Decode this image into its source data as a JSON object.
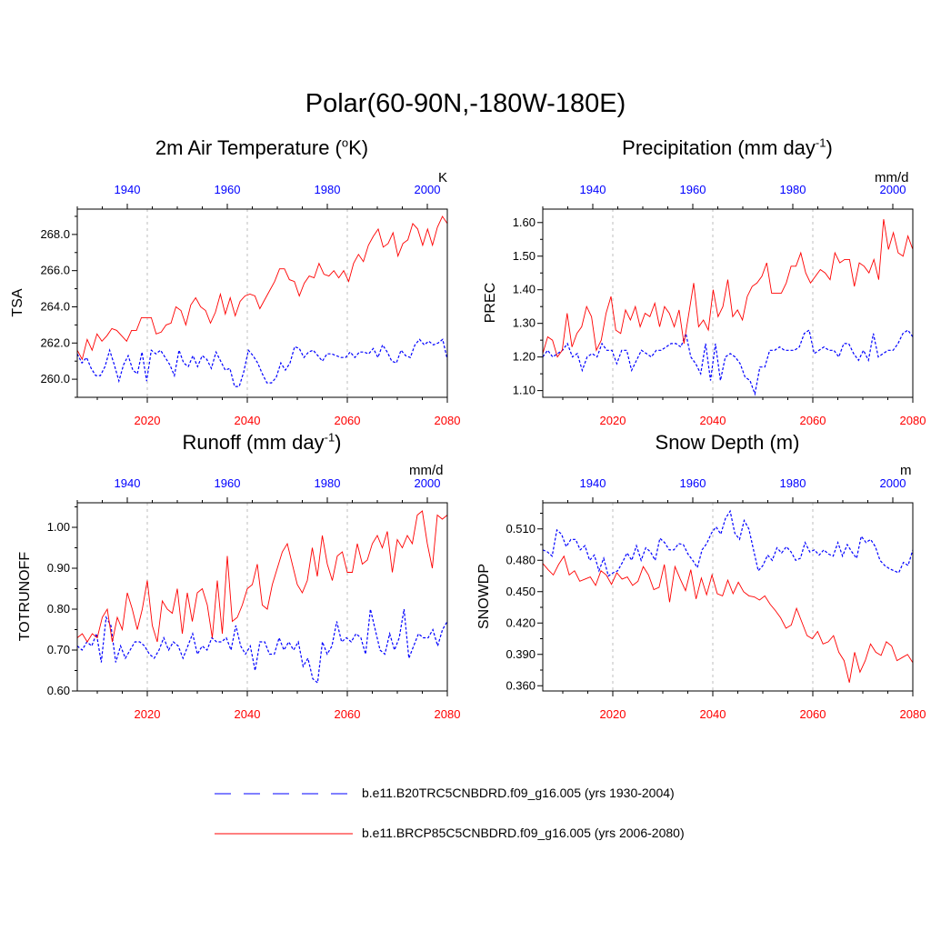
{
  "title": "Polar(60-90N,-180W-180E)",
  "legend": [
    {
      "label": "b.e11.B20TRC5CNBDRD.f09_g16.005 (yrs 1930-2004)",
      "color": "#0000ff",
      "style": "dashed"
    },
    {
      "label": "b.e11.BRCP85C5CNBDRD.f09_g16.005 (yrs 2006-2080)",
      "color": "#ff0000",
      "style": "solid"
    }
  ],
  "chart_data": [
    {
      "type": "line",
      "title_main": "2m Air Temperature (",
      "title_sup": "o",
      "title_tail": "K)",
      "units": "K",
      "ylabel": "TSA",
      "ylim": [
        259.0,
        269.4
      ],
      "yticks": [
        260.0,
        262.0,
        264.0,
        266.0,
        268.0
      ],
      "ytick_labels": [
        "260.0",
        "262.0",
        "264.0",
        "266.0",
        "268.0"
      ],
      "bottom_axis": {
        "range": [
          2006,
          2080
        ],
        "ticks": [
          2020,
          2040,
          2060,
          2080
        ],
        "labels": [
          "2020",
          "2040",
          "2060",
          "2080"
        ],
        "color": "#ff0000"
      },
      "top_axis": {
        "range": [
          1930,
          2004
        ],
        "ticks": [
          1940,
          1960,
          1980,
          2000
        ],
        "labels": [
          "1940",
          "1960",
          "1980",
          "2000"
        ],
        "color": "#0000ff"
      },
      "series": [
        {
          "name": "b.e11.B20TRC5CNBDRD.f09_g16.005 (yrs 1930-2004)",
          "color": "#0000ff",
          "dashed": true,
          "values": [
            261.4,
            260.9,
            261.2,
            260.6,
            260.2,
            260.2,
            260.7,
            261.6,
            260.8,
            259.9,
            260.8,
            261.3,
            260.5,
            260.3,
            261.5,
            259.9,
            261.6,
            261.4,
            261.6,
            261.2,
            260.8,
            260.2,
            261.6,
            260.9,
            260.7,
            261.3,
            260.7,
            261.3,
            261.1,
            260.6,
            261.5,
            261.0,
            260.5,
            260.6,
            259.6,
            259.6,
            260.4,
            261.6,
            261.3,
            260.9,
            260.3,
            259.8,
            259.8,
            260.1,
            260.9,
            260.5,
            260.9,
            261.8,
            261.7,
            261.2,
            261.5,
            261.6,
            261.3,
            261.0,
            261.4,
            261.4,
            261.3,
            261.2,
            261.2,
            261.5,
            261.2,
            261.5,
            261.5,
            261.4,
            261.7,
            261.2,
            261.9,
            261.5,
            261.0,
            260.9,
            261.6,
            261.3,
            261.2,
            261.9,
            262.2,
            261.9,
            262.1,
            261.9,
            262.0,
            262.2,
            261.1
          ]
        },
        {
          "name": "b.e11.BRCP85C5CNBDRD.f09_g16.005 (yrs 2006-2080)",
          "color": "#ff0000",
          "dashed": false,
          "values": [
            261.6,
            261.1,
            262.2,
            261.6,
            262.5,
            262.1,
            262.4,
            262.8,
            262.7,
            262.4,
            262.1,
            262.7,
            262.7,
            263.4,
            263.4,
            263.4,
            262.5,
            262.6,
            263.0,
            263.1,
            264.0,
            263.8,
            263.0,
            264.1,
            264.5,
            264.0,
            263.8,
            263.1,
            263.7,
            264.7,
            263.6,
            264.5,
            263.5,
            264.3,
            264.6,
            264.7,
            264.6,
            263.9,
            264.4,
            264.9,
            265.4,
            266.1,
            266.1,
            265.5,
            265.4,
            264.6,
            265.3,
            265.7,
            265.6,
            266.4,
            265.8,
            265.7,
            266.0,
            265.6,
            266.0,
            265.4,
            266.4,
            266.9,
            266.5,
            267.4,
            267.9,
            268.3,
            267.3,
            267.5,
            268.1,
            266.8,
            267.5,
            267.7,
            268.6,
            268.3,
            267.4,
            268.3,
            267.4,
            268.4,
            269.0,
            268.6
          ]
        }
      ]
    },
    {
      "type": "line",
      "title_main": "Precipitation (mm day",
      "title_sup": "-1",
      "title_tail": ")",
      "units": "mm/d",
      "ylabel": "PREC",
      "ylim": [
        1.08,
        1.64
      ],
      "yticks": [
        1.1,
        1.2,
        1.3,
        1.4,
        1.5,
        1.6
      ],
      "ytick_labels": [
        "1.10",
        "1.20",
        "1.30",
        "1.40",
        "1.50",
        "1.60"
      ],
      "bottom_axis": {
        "range": [
          2006,
          2080
        ],
        "ticks": [
          2020,
          2040,
          2060,
          2080
        ],
        "labels": [
          "2020",
          "2040",
          "2060",
          "2080"
        ],
        "color": "#ff0000"
      },
      "top_axis": {
        "range": [
          1930,
          2004
        ],
        "ticks": [
          1940,
          1960,
          1980,
          2000
        ],
        "labels": [
          "1940",
          "1960",
          "1980",
          "2000"
        ],
        "color": "#0000ff"
      },
      "series": [
        {
          "name": "b.e11.B20TRC5CNBDRD.f09_g16.005 (yrs 1930-2004)",
          "color": "#0000ff",
          "dashed": true,
          "values": [
            1.2,
            1.22,
            1.2,
            1.21,
            1.22,
            1.24,
            1.2,
            1.21,
            1.16,
            1.2,
            1.21,
            1.2,
            1.24,
            1.22,
            1.22,
            1.18,
            1.22,
            1.22,
            1.16,
            1.19,
            1.22,
            1.21,
            1.2,
            1.22,
            1.22,
            1.23,
            1.24,
            1.24,
            1.23,
            1.27,
            1.2,
            1.18,
            1.15,
            1.24,
            1.13,
            1.24,
            1.13,
            1.2,
            1.21,
            1.2,
            1.18,
            1.14,
            1.13,
            1.09,
            1.17,
            1.17,
            1.22,
            1.22,
            1.23,
            1.22,
            1.22,
            1.22,
            1.23,
            1.27,
            1.28,
            1.21,
            1.22,
            1.23,
            1.22,
            1.22,
            1.2,
            1.24,
            1.24,
            1.21,
            1.19,
            1.22,
            1.19,
            1.27,
            1.2,
            1.21,
            1.22,
            1.22,
            1.24,
            1.27,
            1.28,
            1.26
          ]
        },
        {
          "name": "b.e11.BRCP85C5CNBDRD.f09_g16.005 (yrs 2006-2080)",
          "color": "#ff0000",
          "dashed": false,
          "values": [
            1.21,
            1.26,
            1.25,
            1.2,
            1.22,
            1.33,
            1.23,
            1.27,
            1.29,
            1.35,
            1.32,
            1.22,
            1.25,
            1.33,
            1.38,
            1.28,
            1.27,
            1.34,
            1.31,
            1.35,
            1.29,
            1.33,
            1.32,
            1.36,
            1.29,
            1.35,
            1.33,
            1.29,
            1.34,
            1.24,
            1.33,
            1.42,
            1.29,
            1.31,
            1.28,
            1.4,
            1.32,
            1.35,
            1.43,
            1.32,
            1.34,
            1.31,
            1.38,
            1.41,
            1.42,
            1.44,
            1.48,
            1.39,
            1.39,
            1.39,
            1.42,
            1.47,
            1.47,
            1.51,
            1.45,
            1.42,
            1.44,
            1.46,
            1.45,
            1.43,
            1.51,
            1.48,
            1.49,
            1.49,
            1.41,
            1.48,
            1.47,
            1.45,
            1.49,
            1.43,
            1.61,
            1.52,
            1.57,
            1.51,
            1.5,
            1.56,
            1.52
          ]
        }
      ]
    },
    {
      "type": "line",
      "title_main": "Runoff (mm day",
      "title_sup": "-1",
      "title_tail": ")",
      "units": "mm/d",
      "ylabel": "TOTRUNOFF",
      "ylim": [
        0.6,
        1.06
      ],
      "yticks": [
        0.6,
        0.7,
        0.8,
        0.9,
        1.0
      ],
      "ytick_labels": [
        "0.60",
        "0.70",
        "0.80",
        "0.90",
        "1.00"
      ],
      "bottom_axis": {
        "range": [
          2006,
          2080
        ],
        "ticks": [
          2020,
          2040,
          2060,
          2080
        ],
        "labels": [
          "2020",
          "2040",
          "2060",
          "2080"
        ],
        "color": "#ff0000"
      },
      "top_axis": {
        "range": [
          1930,
          2004
        ],
        "ticks": [
          1940,
          1960,
          1980,
          2000
        ],
        "labels": [
          "1940",
          "1960",
          "1980",
          "2000"
        ],
        "color": "#0000ff"
      },
      "series": [
        {
          "name": "b.e11.B20TRC5CNBDRD.f09_g16.005 (yrs 1930-2004)",
          "color": "#0000ff",
          "dashed": true,
          "values": [
            0.71,
            0.7,
            0.72,
            0.71,
            0.74,
            0.67,
            0.78,
            0.76,
            0.67,
            0.71,
            0.68,
            0.7,
            0.72,
            0.72,
            0.71,
            0.69,
            0.68,
            0.7,
            0.73,
            0.7,
            0.72,
            0.71,
            0.68,
            0.71,
            0.74,
            0.69,
            0.71,
            0.7,
            0.73,
            0.72,
            0.72,
            0.73,
            0.7,
            0.76,
            0.71,
            0.69,
            0.71,
            0.65,
            0.72,
            0.72,
            0.69,
            0.69,
            0.73,
            0.7,
            0.72,
            0.7,
            0.72,
            0.66,
            0.68,
            0.63,
            0.62,
            0.72,
            0.69,
            0.71,
            0.77,
            0.72,
            0.73,
            0.72,
            0.74,
            0.73,
            0.69,
            0.8,
            0.75,
            0.7,
            0.69,
            0.74,
            0.7,
            0.73,
            0.8,
            0.68,
            0.71,
            0.74,
            0.73,
            0.73,
            0.75,
            0.71,
            0.75,
            0.77
          ]
        },
        {
          "name": "b.e11.BRCP85C5CNBDRD.f09_g16.005 (yrs 2006-2080)",
          "color": "#ff0000",
          "dashed": false,
          "values": [
            0.73,
            0.74,
            0.72,
            0.74,
            0.73,
            0.78,
            0.8,
            0.72,
            0.78,
            0.75,
            0.84,
            0.8,
            0.75,
            0.8,
            0.87,
            0.76,
            0.72,
            0.82,
            0.8,
            0.79,
            0.85,
            0.74,
            0.84,
            0.77,
            0.84,
            0.85,
            0.81,
            0.73,
            0.87,
            0.74,
            0.93,
            0.77,
            0.78,
            0.81,
            0.85,
            0.86,
            0.91,
            0.81,
            0.8,
            0.86,
            0.9,
            0.94,
            0.96,
            0.91,
            0.86,
            0.84,
            0.87,
            0.95,
            0.88,
            0.98,
            0.91,
            0.87,
            0.93,
            0.94,
            0.89,
            0.89,
            0.96,
            0.91,
            0.92,
            0.96,
            0.98,
            0.95,
            0.99,
            0.89,
            0.97,
            0.95,
            0.98,
            0.96,
            1.03,
            1.04,
            0.96,
            0.9,
            1.03,
            1.02,
            1.03
          ]
        }
      ]
    },
    {
      "type": "line",
      "title_main": "Snow Depth (m)",
      "title_sup": "",
      "title_tail": "",
      "units": "m",
      "ylabel": "SNOWDP",
      "ylim": [
        0.355,
        0.535
      ],
      "yticks": [
        0.36,
        0.39,
        0.42,
        0.45,
        0.48,
        0.51
      ],
      "ytick_labels": [
        "0.360",
        "0.390",
        "0.420",
        "0.450",
        "0.480",
        "0.510"
      ],
      "bottom_axis": {
        "range": [
          2006,
          2080
        ],
        "ticks": [
          2020,
          2040,
          2060,
          2080
        ],
        "labels": [
          "2020",
          "2040",
          "2060",
          "2080"
        ],
        "color": "#ff0000"
      },
      "top_axis": {
        "range": [
          1930,
          2004
        ],
        "ticks": [
          1940,
          1960,
          1980,
          2000
        ],
        "labels": [
          "1940",
          "1960",
          "1980",
          "2000"
        ],
        "color": "#0000ff"
      },
      "series": [
        {
          "name": "b.e11.B20TRC5CNBDRD.f09_g16.005 (yrs 1930-2004)",
          "color": "#0000ff",
          "dashed": true,
          "values": [
            0.49,
            0.488,
            0.484,
            0.509,
            0.505,
            0.493,
            0.5,
            0.5,
            0.49,
            0.494,
            0.48,
            0.485,
            0.47,
            0.482,
            0.465,
            0.468,
            0.47,
            0.478,
            0.487,
            0.48,
            0.494,
            0.48,
            0.492,
            0.488,
            0.48,
            0.501,
            0.497,
            0.49,
            0.49,
            0.496,
            0.495,
            0.486,
            0.48,
            0.473,
            0.49,
            0.496,
            0.506,
            0.512,
            0.505,
            0.52,
            0.527,
            0.506,
            0.5,
            0.518,
            0.51,
            0.49,
            0.47,
            0.475,
            0.485,
            0.48,
            0.492,
            0.487,
            0.493,
            0.488,
            0.48,
            0.482,
            0.497,
            0.488,
            0.49,
            0.485,
            0.49,
            0.486,
            0.484,
            0.497,
            0.484,
            0.495,
            0.488,
            0.482,
            0.503,
            0.497,
            0.5,
            0.493,
            0.48,
            0.475,
            0.472,
            0.47,
            0.468,
            0.478,
            0.475,
            0.49
          ]
        },
        {
          "name": "b.e11.BRCP85C5CNBDRD.f09_g16.005 (yrs 2006-2080)",
          "color": "#ff0000",
          "dashed": false,
          "values": [
            0.477,
            0.471,
            0.466,
            0.476,
            0.484,
            0.466,
            0.47,
            0.46,
            0.462,
            0.464,
            0.456,
            0.47,
            0.466,
            0.457,
            0.468,
            0.462,
            0.464,
            0.456,
            0.46,
            0.474,
            0.466,
            0.452,
            0.454,
            0.476,
            0.44,
            0.474,
            0.462,
            0.451,
            0.471,
            0.443,
            0.463,
            0.447,
            0.466,
            0.448,
            0.446,
            0.461,
            0.448,
            0.459,
            0.45,
            0.446,
            0.445,
            0.442,
            0.446,
            0.438,
            0.432,
            0.425,
            0.415,
            0.418,
            0.434,
            0.421,
            0.408,
            0.405,
            0.412,
            0.4,
            0.402,
            0.408,
            0.392,
            0.384,
            0.363,
            0.392,
            0.373,
            0.384,
            0.4,
            0.392,
            0.389,
            0.402,
            0.398,
            0.384,
            0.387,
            0.39,
            0.382
          ]
        }
      ]
    }
  ]
}
